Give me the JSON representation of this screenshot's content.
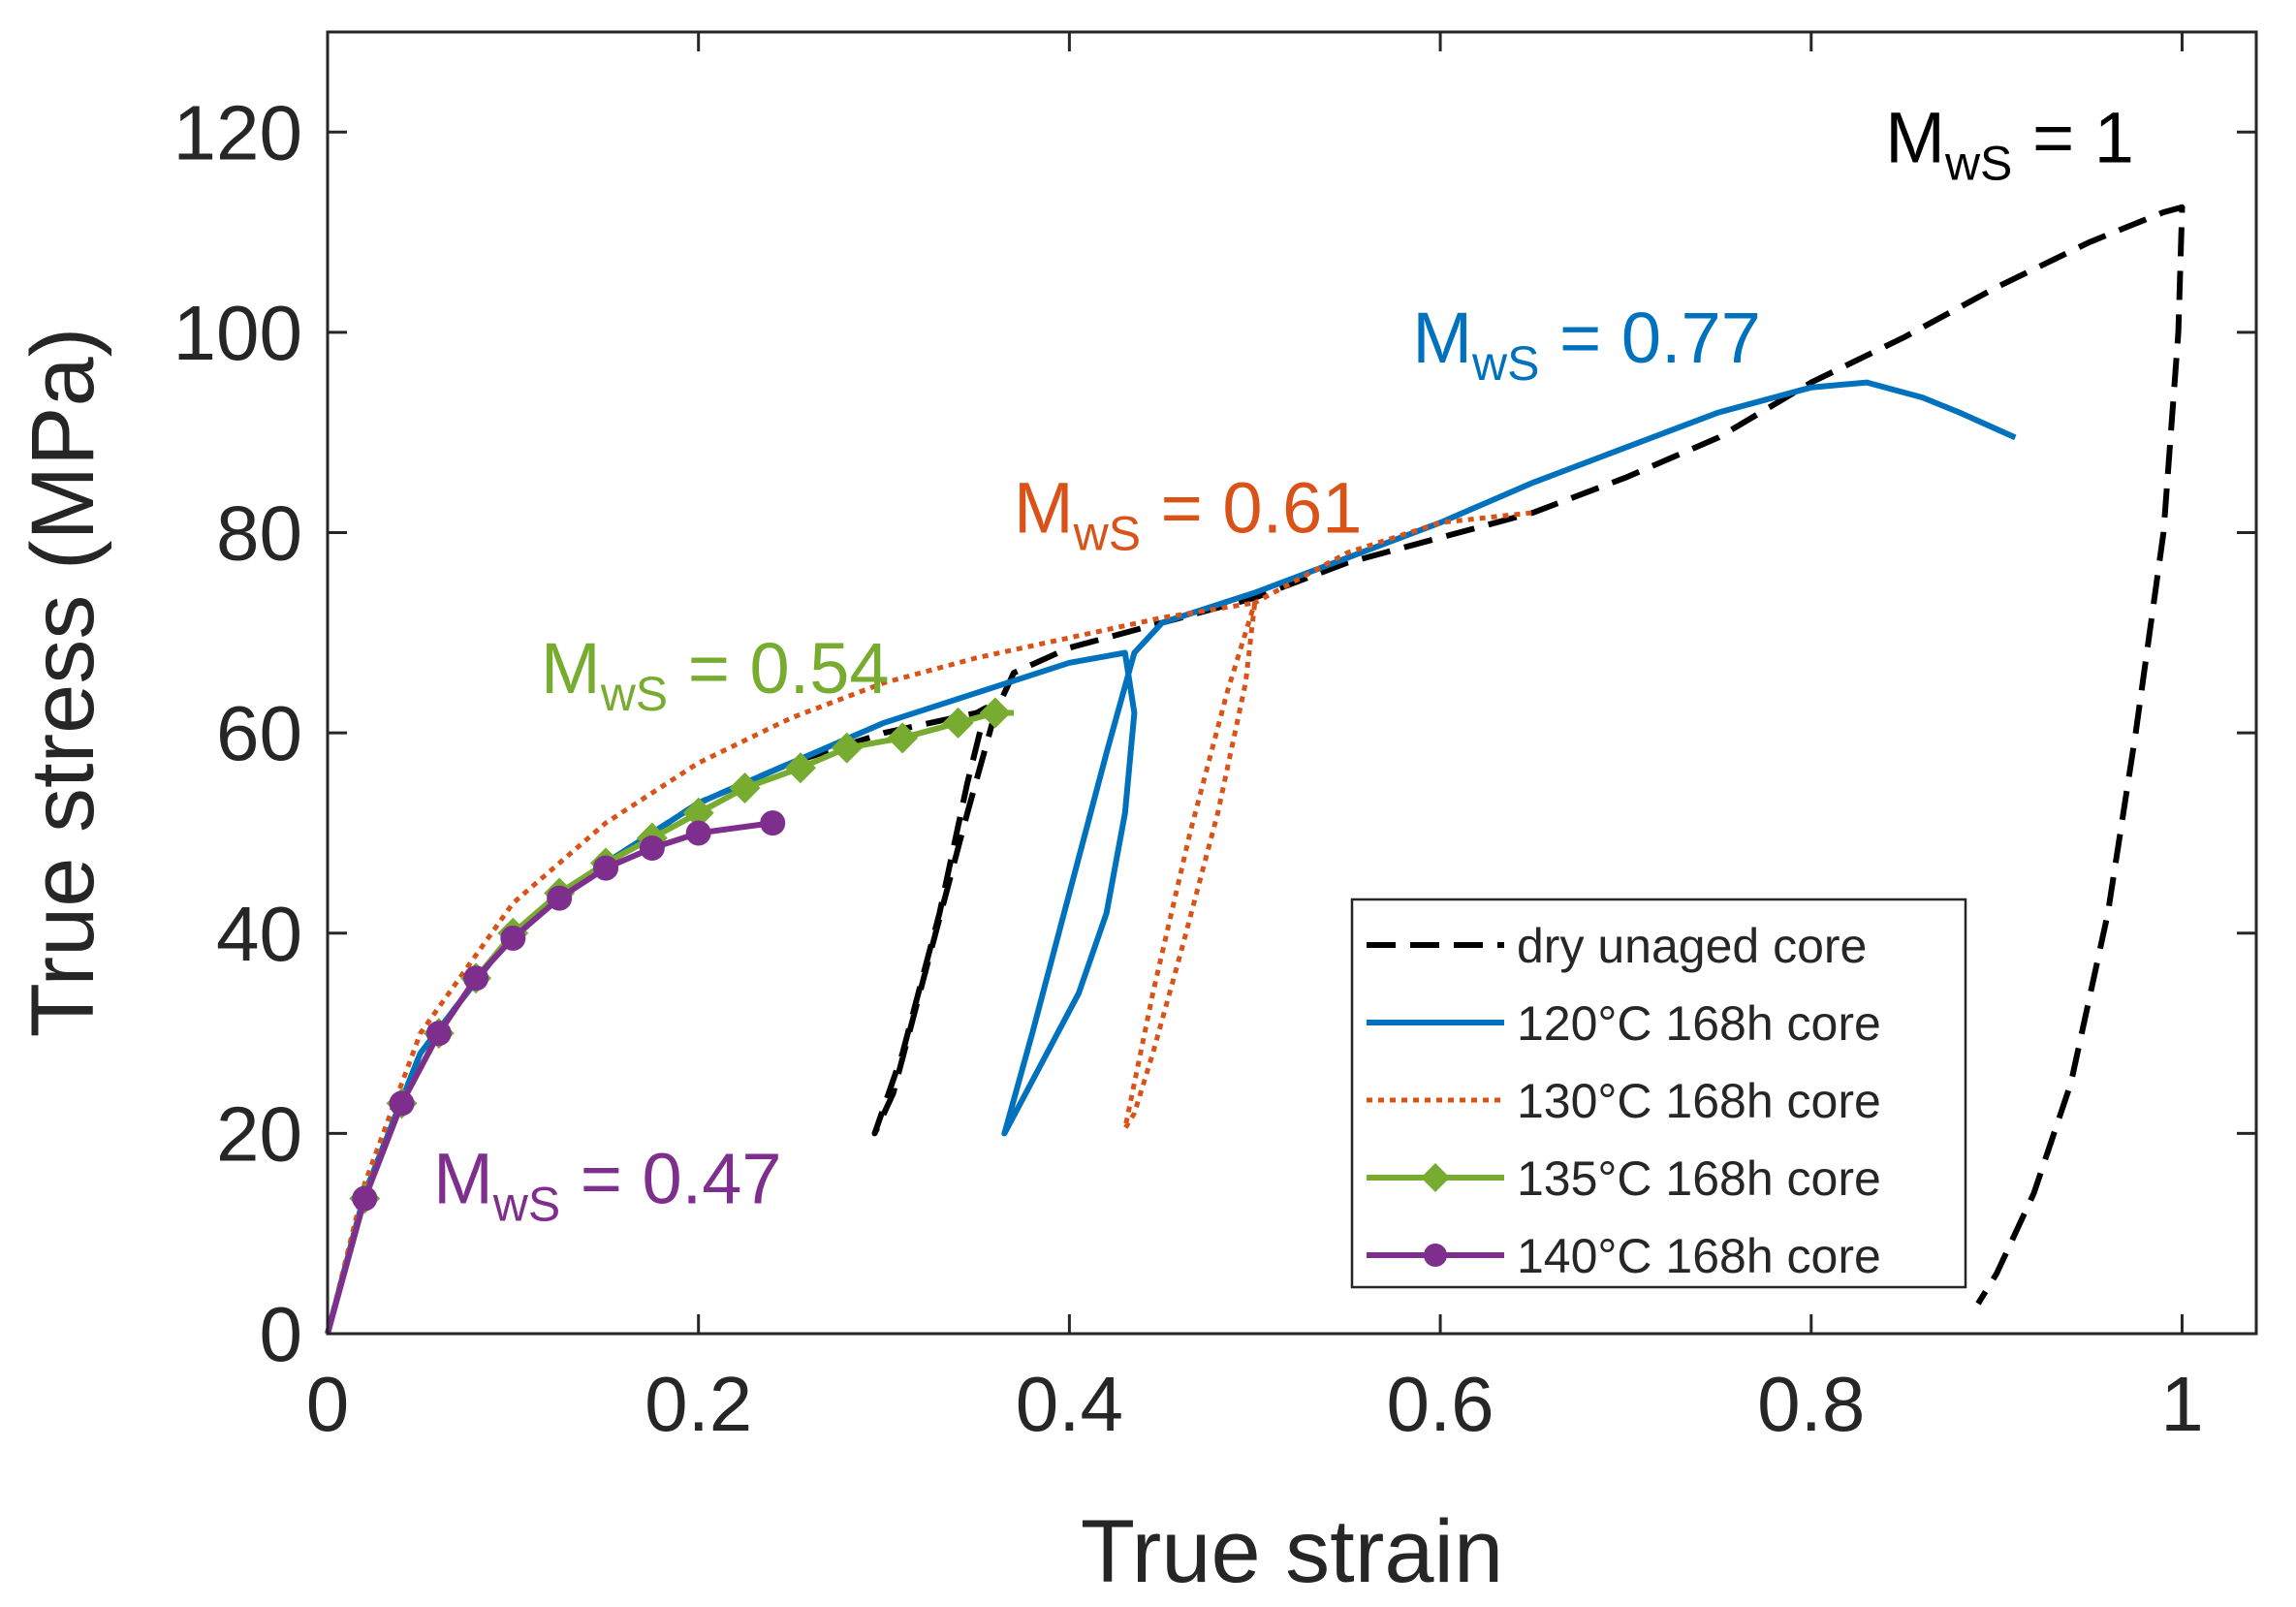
{
  "chart_data": {
    "type": "line",
    "xlabel": "True strain",
    "ylabel": "True stress (MPa)",
    "xlim": [
      0,
      1.04
    ],
    "ylim": [
      0,
      130
    ],
    "xticks": [
      0,
      0.2,
      0.4,
      0.6,
      0.8,
      1
    ],
    "xtick_labels": [
      "0",
      "0.2",
      "0.4",
      "0.6",
      "0.8",
      "1"
    ],
    "yticks": [
      0,
      20,
      40,
      60,
      80,
      100,
      120
    ],
    "ytick_labels": [
      "0",
      "20",
      "40",
      "60",
      "80",
      "100",
      "120"
    ],
    "grid": false,
    "legend_position": "lower-right",
    "series": [
      {
        "name": "dry unaged core",
        "color": "#000000",
        "style": "dashed",
        "marker": "none",
        "x": [
          0,
          0.02,
          0.05,
          0.1,
          0.15,
          0.2,
          0.25,
          0.3,
          0.35,
          0.355,
          0.345,
          0.33,
          0.31,
          0.295,
          0.305,
          0.325,
          0.345,
          0.36,
          0.37,
          0.4,
          0.45,
          0.5,
          0.55,
          0.6,
          0.65,
          0.7,
          0.75,
          0.8,
          0.85,
          0.9,
          0.95,
          0.99,
          1.0,
          0.998,
          0.99,
          0.975,
          0.96,
          0.94,
          0.92,
          0.9,
          0.89
        ],
        "y": [
          0,
          14,
          28,
          40,
          47,
          53,
          57,
          60,
          62,
          62.5,
          55,
          42,
          28,
          20,
          24,
          38,
          52,
          62,
          66,
          68.5,
          71,
          73.5,
          77,
          79.5,
          82,
          85.5,
          89.5,
          95,
          99.5,
          104.5,
          109,
          112,
          112.5,
          100,
          80,
          60,
          42,
          25,
          14,
          6,
          3
        ]
      },
      {
        "name": "120°C 168h core",
        "color": "#0072BD",
        "style": "solid",
        "marker": "none",
        "x": [
          0,
          0.02,
          0.05,
          0.1,
          0.15,
          0.2,
          0.25,
          0.3,
          0.35,
          0.4,
          0.43,
          0.435,
          0.43,
          0.42,
          0.405,
          0.385,
          0.365,
          0.38,
          0.4,
          0.42,
          0.435,
          0.45,
          0.5,
          0.55,
          0.6,
          0.65,
          0.7,
          0.75,
          0.8,
          0.83,
          0.86,
          0.88,
          0.91
        ],
        "y": [
          0,
          14,
          28,
          40,
          47,
          53,
          57,
          61,
          64,
          67,
          68,
          62,
          52,
          42,
          34,
          27,
          20,
          30,
          44,
          58,
          68,
          71,
          74,
          77.5,
          81,
          85,
          88.5,
          92,
          94.5,
          95,
          93.5,
          92,
          89.5
        ]
      },
      {
        "name": "130°C 168h core",
        "color": "#D95319",
        "style": "dotted",
        "marker": "none",
        "x": [
          0,
          0.02,
          0.05,
          0.1,
          0.15,
          0.2,
          0.25,
          0.3,
          0.35,
          0.4,
          0.45,
          0.5,
          0.495,
          0.48,
          0.46,
          0.445,
          0.435,
          0.43,
          0.445,
          0.465,
          0.485,
          0.5,
          0.55,
          0.6,
          0.65
        ],
        "y": [
          0,
          15,
          30,
          43,
          51,
          57,
          61.5,
          65,
          67.5,
          69.5,
          71.5,
          73,
          65,
          52,
          38,
          28,
          22,
          20.5,
          34,
          50,
          64,
          73,
          78,
          81,
          82
        ]
      },
      {
        "name": "135°C 168h core",
        "color": "#77AC30",
        "style": "solid",
        "marker": "diamond",
        "x": [
          0,
          0.02,
          0.04,
          0.06,
          0.08,
          0.1,
          0.125,
          0.15,
          0.175,
          0.2,
          0.225,
          0.255,
          0.28,
          0.31,
          0.34,
          0.36,
          0.37
        ],
        "y": [
          0,
          13.5,
          23,
          30,
          35.5,
          40,
          44,
          47,
          49.5,
          52,
          54.5,
          56.5,
          58.5,
          59.5,
          61,
          62,
          62
        ]
      },
      {
        "name": "140°C 168h core",
        "color": "#7E2F8E",
        "style": "solid",
        "marker": "circle",
        "x": [
          0,
          0.02,
          0.04,
          0.06,
          0.08,
          0.1,
          0.125,
          0.15,
          0.175,
          0.2,
          0.24
        ],
        "y": [
          0,
          13.5,
          23,
          30,
          35.5,
          39.5,
          43.5,
          46.5,
          48.5,
          50,
          51
        ]
      }
    ],
    "annotations": [
      {
        "base": "M",
        "sub": "wS",
        "rest": " = 1",
        "color": "#000000",
        "x": 0.84,
        "y": 117
      },
      {
        "base": "M",
        "sub": "wS",
        "rest": " = 0.77",
        "color": "#0072BD",
        "x": 0.585,
        "y": 97
      },
      {
        "base": "M",
        "sub": "wS",
        "rest": " = 0.61",
        "color": "#D95319",
        "x": 0.37,
        "y": 80
      },
      {
        "base": "M",
        "sub": "wS",
        "rest": " = 0.54",
        "color": "#77AC30",
        "x": 0.115,
        "y": 64
      },
      {
        "base": "M",
        "sub": "wS",
        "rest": " = 0.47",
        "color": "#7E2F8E",
        "x": 0.057,
        "y": 13
      }
    ]
  }
}
